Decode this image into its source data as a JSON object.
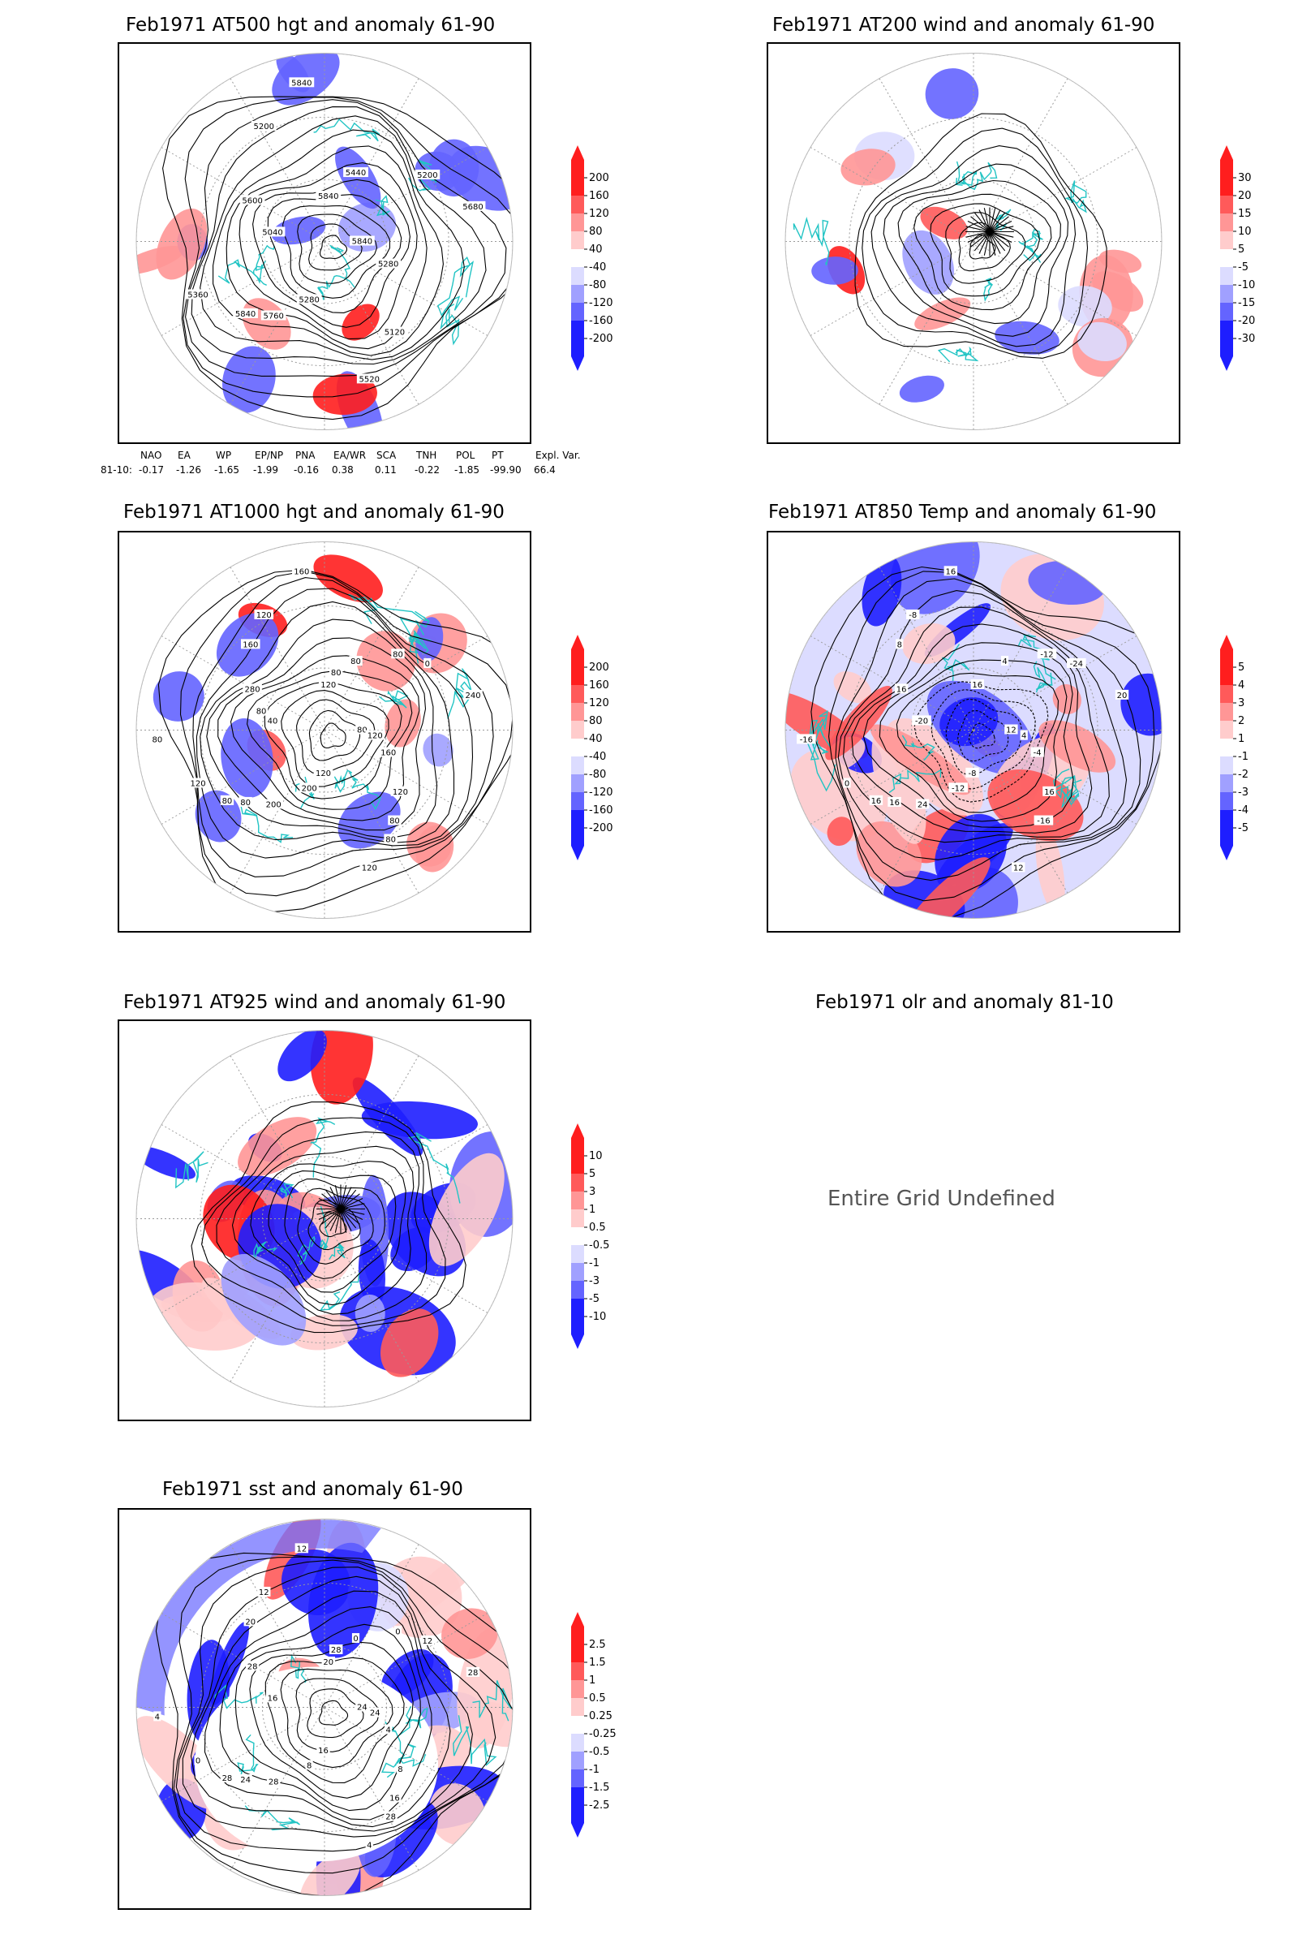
{
  "colors": {
    "coast": "#22c4c4",
    "contour": "#000000",
    "grid": "#9a9a9a",
    "warm_scale": [
      "#ff1e1e",
      "#ff5a5a",
      "#ff9696",
      "#ffcccc"
    ],
    "cool_scale": [
      "#dcdcff",
      "#a0a0ff",
      "#6464ff",
      "#1e1eff"
    ]
  },
  "panels": [
    {
      "id": "z500",
      "title": "Feb1971 AT500 hgt and anomaly 61-90",
      "contour_labels": [
        "5840",
        "5840",
        "5840",
        "5120",
        "5040",
        "5200",
        "5280",
        "5200",
        "5280",
        "5360",
        "5440",
        "5520",
        "5600",
        "5680",
        "5760",
        "5840"
      ],
      "colorbar": [
        "200",
        "160",
        "120",
        "80",
        "40",
        "-40",
        "-80",
        "-120",
        "-160",
        "-200"
      ]
    },
    {
      "id": "u200",
      "title": "Feb1971 AT200 wind and anomaly 61-90",
      "contour_labels": [],
      "colorbar": [
        "30",
        "20",
        "15",
        "10",
        "5",
        "-5",
        "-10",
        "-15",
        "-20",
        "-30"
      ]
    },
    {
      "id": "z1000",
      "title": "Feb1971 AT1000 hgt and anomaly 61-90",
      "contour_labels": [
        "80",
        "80",
        "120",
        "80",
        "40",
        "0",
        "200",
        "120",
        "160",
        "120",
        "80",
        "120",
        "280",
        "240",
        "200",
        "160",
        "120",
        "80",
        "80",
        "120",
        "160",
        "120",
        "80",
        "80",
        "80",
        "80"
      ],
      "colorbar": [
        "200",
        "160",
        "120",
        "80",
        "40",
        "-40",
        "-80",
        "-120",
        "-160",
        "-200"
      ]
    },
    {
      "id": "t850",
      "title": "Feb1971 AT850 Temp and anomaly 61-90",
      "contour_labels": [
        "12",
        "16",
        "16",
        "-16",
        "-20",
        "-24",
        "-12",
        "-8",
        "-4",
        "0",
        "4",
        "12",
        "16",
        "20",
        "24",
        "16",
        "16",
        "-16",
        "-12",
        "-8",
        "8",
        "4",
        "16"
      ],
      "colorbar": [
        "5",
        "4",
        "3",
        "2",
        "1",
        "-1",
        "-2",
        "-3",
        "-4",
        "-5"
      ]
    },
    {
      "id": "w925",
      "title": "Feb1971 AT925 wind and anomaly 61-90",
      "contour_labels": [],
      "colorbar": [
        "10",
        "5",
        "3",
        "1",
        "0.5",
        "-0.5",
        "-1",
        "-3",
        "-5",
        "-10"
      ]
    },
    {
      "id": "olr",
      "title": "Feb1971 olr and anomaly 81-10",
      "message": "Entire Grid Undefined"
    },
    {
      "id": "sst",
      "title": "Feb1971 sst and anomaly 61-90",
      "contour_labels": [
        "24",
        "24",
        "20",
        "16",
        "16",
        "12",
        "8",
        "12",
        "4",
        "0",
        "0",
        "4",
        "28",
        "28",
        "28",
        "12",
        "8",
        "4",
        "0",
        "16",
        "20",
        "24",
        "28",
        "28",
        "28"
      ],
      "colorbar": [
        "2.5",
        "1.5",
        "1",
        "0.5",
        "0.25",
        "-0.25",
        "-0.5",
        "-1",
        "-1.5",
        "-2.5"
      ]
    }
  ],
  "teleconnection": {
    "headers": [
      "NAO",
      "EA",
      "WP",
      "EP/NP",
      "PNA",
      "EA/WR",
      "SCA",
      "TNH",
      "POL",
      "PT",
      "Expl. Var."
    ],
    "row_label": "81-10:",
    "values": [
      "-0.17",
      "-1.26",
      "-1.65",
      "-1.99",
      "-0.16",
      "0.38",
      "0.11",
      "-0.22",
      "-1.85",
      "-99.90",
      "66.4"
    ]
  }
}
